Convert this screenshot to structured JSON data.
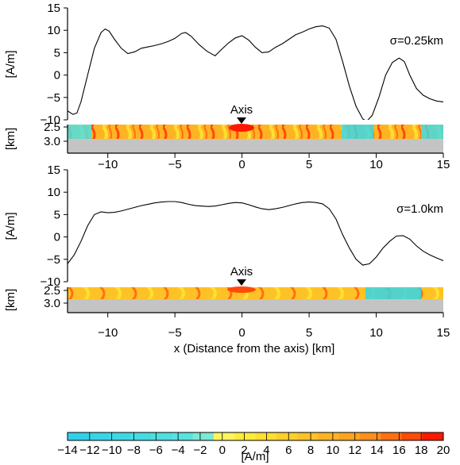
{
  "chart_data": [
    {
      "type": "line",
      "panel": "top",
      "annotation": "σ=0.25km",
      "ylabel": "[A/m]",
      "ylim": [
        -10,
        15
      ],
      "xlim": [
        -13,
        15
      ],
      "yticks": [
        15,
        10,
        5,
        0,
        -5,
        -10
      ],
      "series": [
        {
          "x": [
            -13,
            -12.6,
            -12.3,
            -12,
            -11.5,
            -11,
            -10.5,
            -10.2,
            -9.9,
            -9.5,
            -9,
            -8.5,
            -8,
            -7.5,
            -7,
            -6.5,
            -6,
            -5.5,
            -5,
            -4.5,
            -4.2,
            -3.8,
            -3.2,
            -2.6,
            -2,
            -1.5,
            -1,
            -0.5,
            0,
            0.5,
            1,
            1.5,
            2,
            2.5,
            3,
            3.5,
            4,
            4.5,
            5,
            5.5,
            6,
            6.5,
            7,
            7.5,
            8,
            8.5,
            9,
            9.3,
            9.7,
            10.2,
            10.7,
            11.2,
            11.7,
            12.1,
            12.5,
            13,
            13.5,
            14,
            14.5,
            15
          ],
          "values": [
            -8,
            -8.8,
            -8.5,
            -6,
            0,
            6,
            9.5,
            10.3,
            9.8,
            8,
            6,
            4.8,
            5.2,
            6,
            6.3,
            6.6,
            7,
            7.5,
            8.2,
            9.3,
            9.5,
            8.7,
            6.8,
            5.3,
            4.3,
            5.8,
            7.2,
            8.3,
            8.8,
            7.8,
            6.2,
            5,
            5.2,
            6.2,
            7,
            8,
            9,
            9.6,
            10.3,
            10.8,
            11,
            10.5,
            8,
            3,
            -2.5,
            -7,
            -9.8,
            -10.3,
            -9,
            -5,
            0,
            2.8,
            3.8,
            3,
            0,
            -3,
            -4.5,
            -5.3,
            -5.8,
            -6
          ]
        }
      ]
    },
    {
      "type": "line",
      "panel": "bottom",
      "annotation": "σ=1.0km",
      "ylabel": "[A/m]",
      "ylim": [
        -10,
        15
      ],
      "xlim": [
        -13,
        15
      ],
      "yticks": [
        15,
        10,
        5,
        0,
        -5,
        -10
      ],
      "xticks": [
        -10,
        -5,
        0,
        5,
        10,
        15
      ],
      "xlabel": "x (Distance from the axis) [km]",
      "series": [
        {
          "x": [
            -13,
            -12.5,
            -12,
            -11.5,
            -11,
            -10.5,
            -10,
            -9.5,
            -9,
            -8.5,
            -8,
            -7.5,
            -7,
            -6.5,
            -6,
            -5.5,
            -5,
            -4.5,
            -4,
            -3.5,
            -3,
            -2.5,
            -2,
            -1.5,
            -1,
            -0.5,
            0,
            0.5,
            1,
            1.5,
            2,
            2.5,
            3,
            3.5,
            4,
            4.5,
            5,
            5.5,
            6,
            6.5,
            7,
            7.5,
            8,
            8.5,
            9,
            9.5,
            10,
            10.5,
            11,
            11.5,
            12,
            12.5,
            13,
            13.5,
            14,
            14.5,
            15
          ],
          "values": [
            -6,
            -4,
            -1,
            2.5,
            5,
            5.6,
            5.4,
            5.5,
            5.8,
            6.2,
            6.6,
            7,
            7.3,
            7.6,
            7.8,
            7.9,
            7.9,
            7.7,
            7.3,
            7,
            6.9,
            6.8,
            6.9,
            7.2,
            7.5,
            7.7,
            7.6,
            7.2,
            6.7,
            6.3,
            6.1,
            6.3,
            6.6,
            7,
            7.4,
            7.7,
            7.8,
            7.7,
            7.4,
            6.3,
            4,
            0.5,
            -2.5,
            -5,
            -6.3,
            -6,
            -4.5,
            -2.5,
            -1,
            0.2,
            0.3,
            -0.5,
            -2,
            -3.2,
            -4,
            -4.7,
            -5.3
          ]
        }
      ]
    }
  ],
  "axis": {
    "label": "Axis"
  },
  "depth_panel": {
    "ylabel": "[km]",
    "yticks": [
      "2.5",
      "3.0"
    ]
  },
  "colorbar": {
    "unit": "[A/m]",
    "min": -14,
    "max": 20,
    "step": 2,
    "ticks": [
      "−14",
      "−12",
      "−10",
      "−8",
      "−6",
      "−4",
      "−2",
      "0",
      "2",
      "4",
      "6",
      "8",
      "10",
      "12",
      "14",
      "16",
      "18",
      "20"
    ],
    "colors": [
      "#2fd1ea",
      "#35d5e8",
      "#3cd8e6",
      "#44dbe3",
      "#4ddfe1",
      "#58e2df",
      "#7de8d3",
      "#fff45c",
      "#ffec3a",
      "#ffde2e",
      "#ffd02a",
      "#ffc226",
      "#ffb322",
      "#ffa41e",
      "#ff8f1a",
      "#ff7013",
      "#ff4a0a",
      "#ff1800"
    ]
  }
}
